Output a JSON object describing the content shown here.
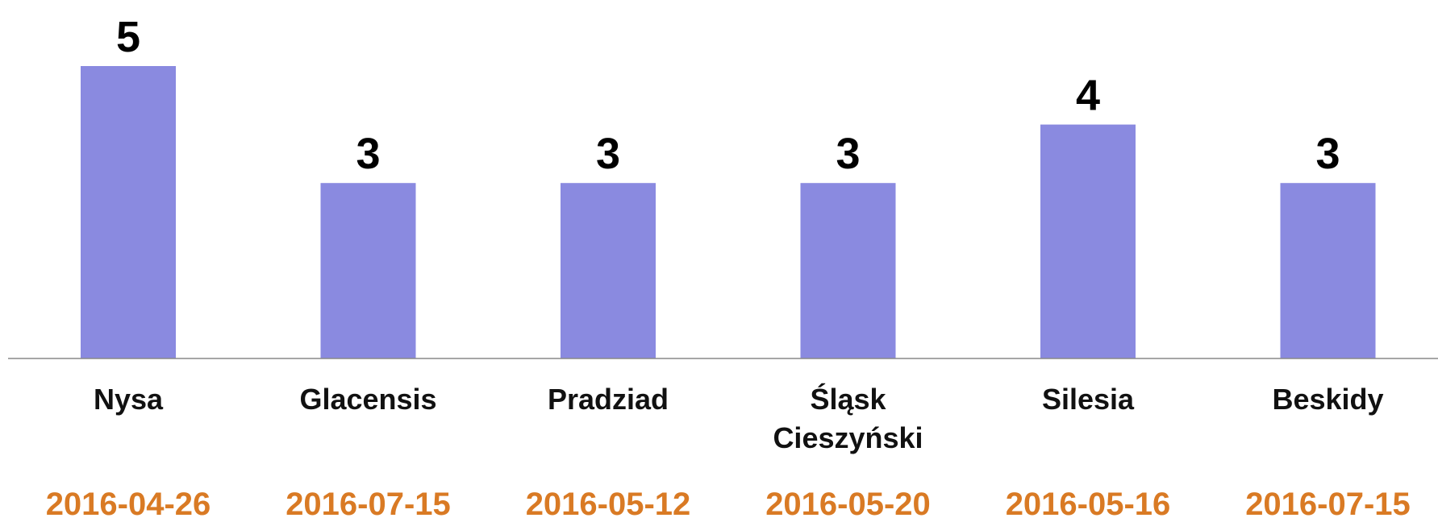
{
  "chart_data": {
    "type": "bar",
    "categories": [
      "Nysa",
      "Glacensis",
      "Pradziad",
      "Śląsk Cieszyński",
      "Silesia",
      "Beskidy"
    ],
    "values": [
      5,
      3,
      3,
      3,
      4,
      3
    ],
    "dates": [
      "2016-04-26",
      "2016-07-15",
      "2016-05-12",
      "2016-05-20",
      "2016-05-16",
      "2016-07-15"
    ],
    "color": "#8a8ae0",
    "date_color": "#d97a24",
    "ylim": [
      0,
      5
    ]
  }
}
